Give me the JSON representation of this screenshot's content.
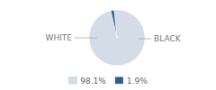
{
  "chart_data": {
    "type": "pie",
    "categories": [
      "WHITE",
      "BLACK"
    ],
    "values": [
      98.1,
      1.9
    ],
    "value_labels": [
      "98.1%",
      "1.9%"
    ],
    "colors": [
      "#d4dce8",
      "#2d5f8a"
    ],
    "legend": "bottom"
  }
}
